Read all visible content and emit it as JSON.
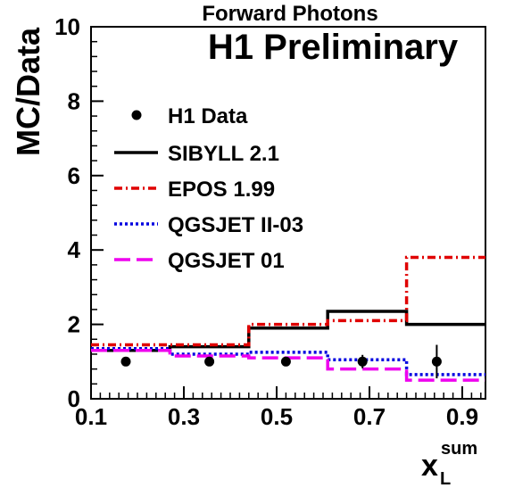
{
  "chart_data": {
    "type": "line",
    "title": "Forward Photons",
    "subtitle": "H1 Preliminary",
    "ylabel": "MC/Data",
    "xlabel_main": "x",
    "xlabel_sup": "sum",
    "xlabel_sub": "L",
    "xlim": [
      0.1,
      0.95
    ],
    "ylim": [
      0,
      10
    ],
    "xticks": [
      0.1,
      0.3,
      0.5,
      0.7,
      0.9
    ],
    "xtick_labels": [
      "0.1",
      "0.3",
      "0.5",
      "0.7",
      "0.9"
    ],
    "yticks": [
      0,
      2,
      4,
      6,
      8,
      10
    ],
    "ytick_labels": [
      "0",
      "2",
      "4",
      "6",
      "8",
      "10"
    ],
    "bin_edges": [
      0.1,
      0.27,
      0.44,
      0.61,
      0.78,
      0.95
    ],
    "legend_position": "left",
    "data_points": {
      "name": "H1 Data",
      "x": [
        0.175,
        0.355,
        0.52,
        0.685,
        0.845
      ],
      "y": [
        1.0,
        1.0,
        1.0,
        1.0,
        1.0
      ],
      "yerr": [
        0.05,
        0.05,
        0.06,
        0.18,
        0.45
      ]
    },
    "series": [
      {
        "name": "SIBYLL 2.1",
        "values": [
          1.3,
          1.4,
          1.9,
          2.35,
          2.0
        ],
        "color": "#000000",
        "style": "solid"
      },
      {
        "name": "EPOS 1.99",
        "values": [
          1.45,
          1.45,
          2.0,
          2.1,
          3.8
        ],
        "color": "#e00000",
        "style": "dashdot"
      },
      {
        "name": "QGSJET II-03",
        "values": [
          1.35,
          1.2,
          1.25,
          1.05,
          0.65
        ],
        "color": "#0000e0",
        "style": "dotted"
      },
      {
        "name": "QGSJET 01",
        "values": [
          1.3,
          1.15,
          1.1,
          0.8,
          0.5
        ],
        "color": "#ee00ee",
        "style": "dashed"
      }
    ]
  }
}
